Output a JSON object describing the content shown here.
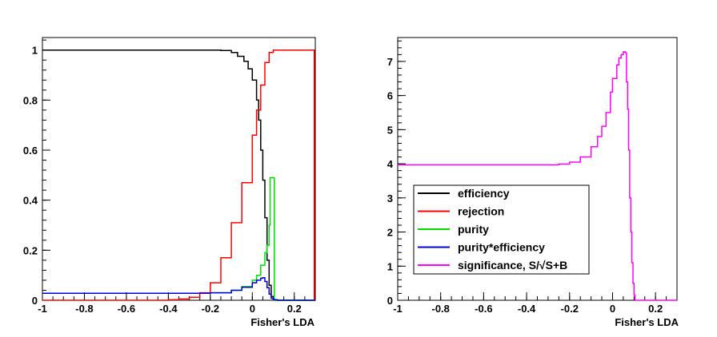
{
  "chart_data": [
    {
      "type": "line",
      "xlabel": "Fisher's LDA",
      "ylabel": "",
      "xlim": [
        -1,
        0.3
      ],
      "ylim": [
        0,
        1.05
      ],
      "x_ticks": [
        "-1",
        "-0.8",
        "-0.6",
        "-0.4",
        "-0.2",
        "0",
        "0.2"
      ],
      "y_ticks": [
        "0",
        "0.2",
        "0.4",
        "0.6",
        "0.8",
        "1"
      ],
      "series": [
        {
          "name": "efficiency",
          "color": "#000000",
          "step": true,
          "x": [
            -1,
            -0.4,
            -0.2,
            -0.15,
            -0.1,
            -0.07,
            -0.04,
            -0.02,
            0.0,
            0.02,
            0.03,
            0.04,
            0.05,
            0.06,
            0.07,
            0.08,
            0.09,
            0.1,
            0.11,
            0.3
          ],
          "y": [
            1,
            1,
            1,
            0.998,
            0.99,
            0.975,
            0.955,
            0.925,
            0.88,
            0.8,
            0.72,
            0.6,
            0.48,
            0.33,
            0.16,
            0.06,
            0.015,
            0.003,
            0.0,
            0.0
          ]
        },
        {
          "name": "rejection",
          "color": "#ff0000",
          "step": true,
          "x": [
            -1,
            -0.45,
            -0.4,
            -0.35,
            -0.3,
            -0.25,
            -0.2,
            -0.15,
            -0.1,
            -0.05,
            0.0,
            0.02,
            0.04,
            0.06,
            0.08,
            0.1,
            0.12,
            0.2,
            0.29,
            0.295,
            0.3
          ],
          "y": [
            0,
            0,
            0.002,
            0.005,
            0.012,
            0.03,
            0.07,
            0.17,
            0.31,
            0.47,
            0.66,
            0.76,
            0.86,
            0.95,
            0.99,
            1.0,
            1.0,
            1.0,
            1.0,
            0.0,
            0.0
          ]
        },
        {
          "name": "purity",
          "color": "#00dd00",
          "step": true,
          "x": [
            -1,
            -0.6,
            -0.3,
            -0.2,
            -0.1,
            -0.05,
            0.0,
            0.02,
            0.04,
            0.06,
            0.07,
            0.08,
            0.085,
            0.09,
            0.1,
            0.105,
            0.11,
            0.3
          ],
          "y": [
            0.028,
            0.028,
            0.028,
            0.03,
            0.04,
            0.055,
            0.08,
            0.1,
            0.14,
            0.19,
            0.22,
            0.3,
            0.49,
            0.49,
            0.49,
            0.0,
            0.0,
            0.0
          ]
        },
        {
          "name": "purity*efficiency",
          "color": "#0000dd",
          "step": true,
          "x": [
            -1,
            -0.6,
            -0.3,
            -0.2,
            -0.1,
            -0.05,
            0.0,
            0.02,
            0.04,
            0.05,
            0.06,
            0.07,
            0.08,
            0.09,
            0.1,
            0.12,
            0.3
          ],
          "y": [
            0.028,
            0.028,
            0.028,
            0.03,
            0.04,
            0.052,
            0.07,
            0.08,
            0.088,
            0.09,
            0.075,
            0.05,
            0.025,
            0.008,
            0.002,
            0.0,
            0.0
          ]
        }
      ]
    },
    {
      "type": "line",
      "xlabel": "Fisher's LDA",
      "ylabel": "",
      "xlim": [
        -1,
        0.3
      ],
      "ylim": [
        0,
        7.7
      ],
      "x_ticks": [
        "-1",
        "-0.8",
        "-0.6",
        "-0.4",
        "-0.2",
        "0",
        "0.2"
      ],
      "y_ticks": [
        "0",
        "1",
        "2",
        "3",
        "4",
        "5",
        "6",
        "7"
      ],
      "series": [
        {
          "name": "significance, S/√S+B",
          "color": "#ff00ff",
          "step": true,
          "x": [
            -1,
            -0.5,
            -0.3,
            -0.25,
            -0.2,
            -0.15,
            -0.1,
            -0.07,
            -0.05,
            -0.03,
            -0.01,
            0.0,
            0.02,
            0.03,
            0.04,
            0.05,
            0.06,
            0.065,
            0.07,
            0.075,
            0.08,
            0.085,
            0.09,
            0.095,
            0.1,
            0.105,
            0.11,
            0.3
          ],
          "y": [
            3.97,
            3.97,
            3.97,
            3.99,
            4.05,
            4.2,
            4.5,
            4.8,
            5.1,
            5.5,
            6.1,
            6.5,
            6.9,
            7.1,
            7.2,
            7.28,
            7.25,
            6.4,
            5.6,
            4.4,
            3.0,
            2.0,
            1.1,
            0.5,
            0.15,
            0.0,
            0.0,
            0.0
          ]
        }
      ]
    }
  ],
  "legend": {
    "items": [
      {
        "label": "efficiency",
        "color": "#000000"
      },
      {
        "label": "rejection",
        "color": "#ff0000"
      },
      {
        "label": "purity",
        "color": "#00dd00"
      },
      {
        "label": "purity*efficiency",
        "color": "#0000dd"
      },
      {
        "label": "significance, S/√S+B",
        "color": "#ff00ff"
      }
    ]
  }
}
